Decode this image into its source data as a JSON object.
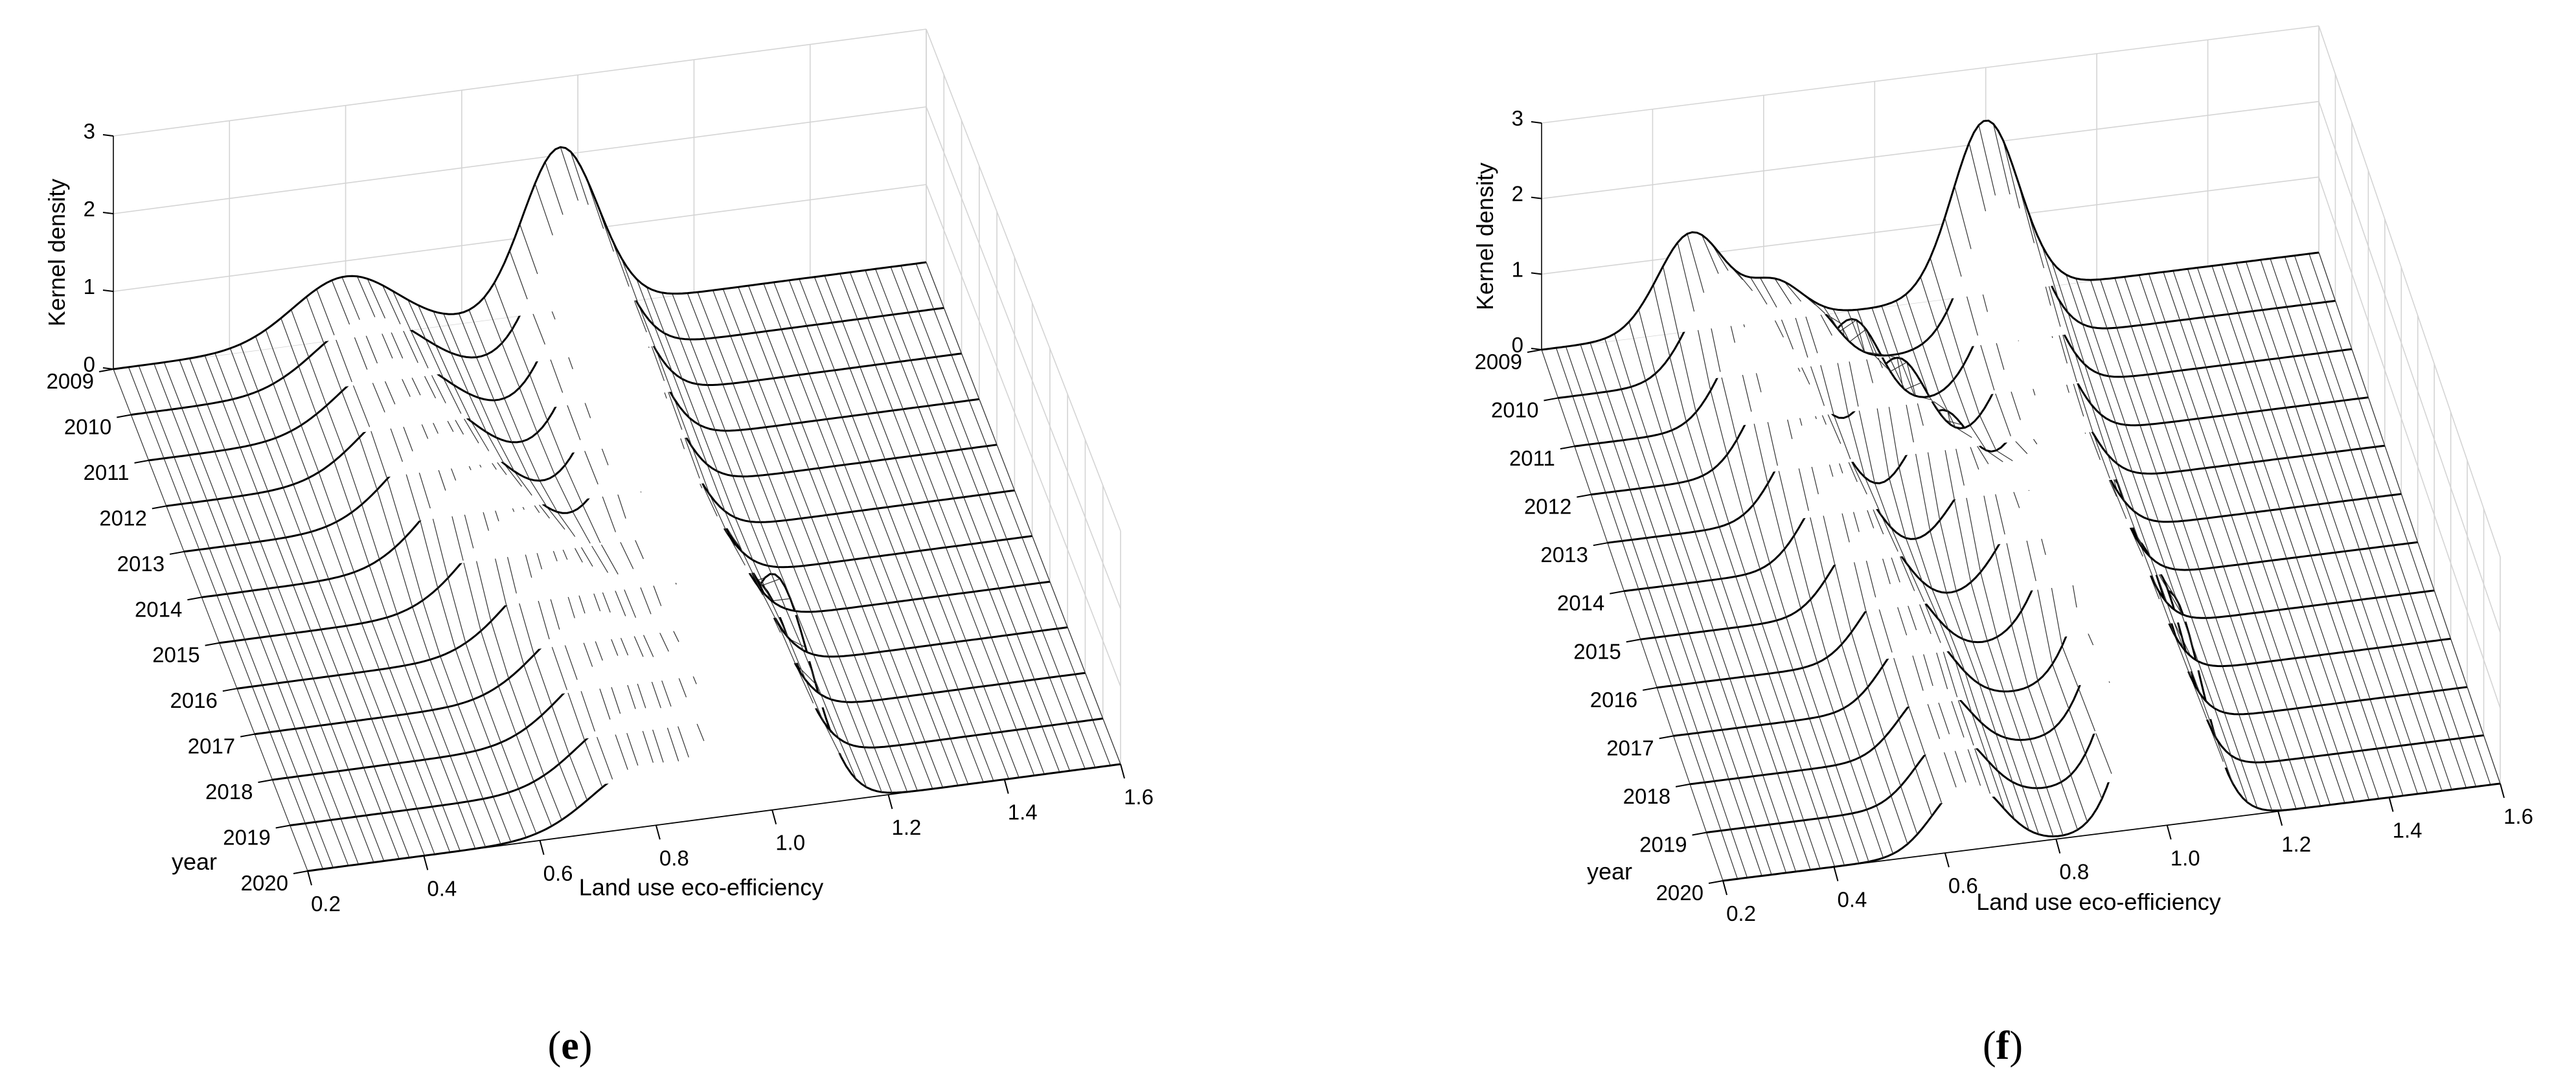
{
  "figure": {
    "panels": [
      {
        "label": "e"
      },
      {
        "label": "f"
      }
    ]
  },
  "chart_data": [
    {
      "type": "surface",
      "panel": "e",
      "title": "",
      "xlabel": "Land use eco-efficiency",
      "ylabel": "year",
      "zlabel": "Kernel density",
      "x_ticks": [
        "0.2",
        "0.4",
        "0.6",
        "0.8",
        "1.0",
        "1.2",
        "1.4",
        "1.6"
      ],
      "y_ticks": [
        "2009",
        "2010",
        "2011",
        "2012",
        "2013",
        "2014",
        "2015",
        "2016",
        "2017",
        "2018",
        "2019",
        "2020"
      ],
      "z_ticks": [
        "0",
        "1",
        "2",
        "3"
      ],
      "xlim": [
        0.2,
        1.6
      ],
      "zlim": [
        0,
        3
      ],
      "grid": true,
      "series": [
        {
          "year": "2009",
          "peaks": [
            {
              "x": 0.6,
              "height": 0.8,
              "width": 0.09
            },
            {
              "x": 0.97,
              "height": 2.1,
              "width": 0.065
            }
          ]
        },
        {
          "year": "2010",
          "peaks": [
            {
              "x": 0.61,
              "height": 0.85,
              "width": 0.09
            },
            {
              "x": 0.97,
              "height": 2.0,
              "width": 0.065
            }
          ]
        },
        {
          "year": "2011",
          "peaks": [
            {
              "x": 0.62,
              "height": 0.9,
              "width": 0.09
            },
            {
              "x": 0.97,
              "height": 2.0,
              "width": 0.065
            }
          ]
        },
        {
          "year": "2012",
          "peaks": [
            {
              "x": 0.63,
              "height": 1.0,
              "width": 0.09
            },
            {
              "x": 0.97,
              "height": 1.9,
              "width": 0.065
            }
          ]
        },
        {
          "year": "2013",
          "peaks": [
            {
              "x": 0.65,
              "height": 1.1,
              "width": 0.09
            },
            {
              "x": 0.97,
              "height": 1.8,
              "width": 0.065
            }
          ]
        },
        {
          "year": "2014",
          "peaks": [
            {
              "x": 0.68,
              "height": 1.2,
              "width": 0.09
            },
            {
              "x": 0.97,
              "height": 1.7,
              "width": 0.065
            }
          ]
        },
        {
          "year": "2015",
          "peaks": [
            {
              "x": 0.72,
              "height": 1.2,
              "width": 0.09
            },
            {
              "x": 0.98,
              "height": 1.6,
              "width": 0.065
            }
          ]
        },
        {
          "year": "2016",
          "peaks": [
            {
              "x": 0.76,
              "height": 1.1,
              "width": 0.09
            },
            {
              "x": 0.99,
              "height": 1.7,
              "width": 0.065
            }
          ]
        },
        {
          "year": "2017",
          "peaks": [
            {
              "x": 0.78,
              "height": 1.0,
              "width": 0.09
            },
            {
              "x": 1.0,
              "height": 1.8,
              "width": 0.065
            }
          ]
        },
        {
          "year": "2018",
          "peaks": [
            {
              "x": 0.79,
              "height": 1.0,
              "width": 0.09
            },
            {
              "x": 1.0,
              "height": 2.0,
              "width": 0.065
            }
          ]
        },
        {
          "year": "2019",
          "peaks": [
            {
              "x": 0.79,
              "height": 0.9,
              "width": 0.09
            },
            {
              "x": 1.0,
              "height": 2.3,
              "width": 0.065
            }
          ]
        },
        {
          "year": "2020",
          "peaks": [
            {
              "x": 0.78,
              "height": 0.8,
              "width": 0.09
            },
            {
              "x": 1.0,
              "height": 3.0,
              "width": 0.065
            }
          ]
        }
      ]
    },
    {
      "type": "surface",
      "panel": "f",
      "title": "",
      "xlabel": "Land use eco-efficiency",
      "ylabel": "year",
      "zlabel": "Kernel density",
      "x_ticks": [
        "0.2",
        "0.4",
        "0.6",
        "0.8",
        "1.0",
        "1.2",
        "1.4",
        "1.6"
      ],
      "y_ticks": [
        "2009",
        "2010",
        "2011",
        "2012",
        "2013",
        "2014",
        "2015",
        "2016",
        "2017",
        "2018",
        "2019",
        "2020"
      ],
      "z_ticks": [
        "0",
        "1",
        "2",
        "3"
      ],
      "xlim": [
        0.2,
        1.6
      ],
      "zlim": [
        0,
        3
      ],
      "grid": true,
      "series": [
        {
          "year": "2009",
          "peaks": [
            {
              "x": 0.47,
              "height": 1.3,
              "width": 0.06
            },
            {
              "x": 0.62,
              "height": 0.5,
              "width": 0.05
            },
            {
              "x": 1.0,
              "height": 2.3,
              "width": 0.06
            }
          ]
        },
        {
          "year": "2010",
          "peaks": [
            {
              "x": 0.5,
              "height": 1.4,
              "width": 0.06
            },
            {
              "x": 0.65,
              "height": 0.8,
              "width": 0.05
            },
            {
              "x": 1.0,
              "height": 2.0,
              "width": 0.06
            }
          ]
        },
        {
          "year": "2011",
          "peaks": [
            {
              "x": 0.53,
              "height": 1.4,
              "width": 0.06
            },
            {
              "x": 0.7,
              "height": 1.2,
              "width": 0.05
            },
            {
              "x": 1.0,
              "height": 1.7,
              "width": 0.06
            }
          ]
        },
        {
          "year": "2012",
          "peaks": [
            {
              "x": 0.55,
              "height": 1.4,
              "width": 0.06
            },
            {
              "x": 0.75,
              "height": 1.3,
              "width": 0.055
            },
            {
              "x": 1.0,
              "height": 1.5,
              "width": 0.06
            }
          ]
        },
        {
          "year": "2013",
          "peaks": [
            {
              "x": 0.57,
              "height": 1.3,
              "width": 0.06
            },
            {
              "x": 0.8,
              "height": 1.2,
              "width": 0.055
            },
            {
              "x": 1.0,
              "height": 1.4,
              "width": 0.06
            }
          ]
        },
        {
          "year": "2014",
          "peaks": [
            {
              "x": 0.59,
              "height": 1.2,
              "width": 0.06
            },
            {
              "x": 0.85,
              "height": 1.0,
              "width": 0.06
            },
            {
              "x": 1.0,
              "height": 1.5,
              "width": 0.06
            }
          ]
        },
        {
          "year": "2015",
          "peaks": [
            {
              "x": 0.61,
              "height": 1.1,
              "width": 0.06
            },
            {
              "x": 0.9,
              "height": 0.9,
              "width": 0.06
            },
            {
              "x": 1.0,
              "height": 1.7,
              "width": 0.06
            }
          ]
        },
        {
          "year": "2016",
          "peaks": [
            {
              "x": 0.63,
              "height": 1.0,
              "width": 0.06
            },
            {
              "x": 0.94,
              "height": 0.8,
              "width": 0.06
            },
            {
              "x": 1.0,
              "height": 1.9,
              "width": 0.06
            }
          ]
        },
        {
          "year": "2017",
          "peaks": [
            {
              "x": 0.64,
              "height": 1.0,
              "width": 0.06
            },
            {
              "x": 1.0,
              "height": 2.2,
              "width": 0.06
            }
          ]
        },
        {
          "year": "2018",
          "peaks": [
            {
              "x": 0.64,
              "height": 0.9,
              "width": 0.06
            },
            {
              "x": 1.0,
              "height": 2.5,
              "width": 0.06
            }
          ]
        },
        {
          "year": "2019",
          "peaks": [
            {
              "x": 0.64,
              "height": 0.9,
              "width": 0.06
            },
            {
              "x": 1.0,
              "height": 2.8,
              "width": 0.06
            }
          ]
        },
        {
          "year": "2020",
          "peaks": [
            {
              "x": 0.64,
              "height": 0.9,
              "width": 0.06
            },
            {
              "x": 1.0,
              "height": 3.1,
              "width": 0.06
            }
          ]
        }
      ]
    }
  ]
}
